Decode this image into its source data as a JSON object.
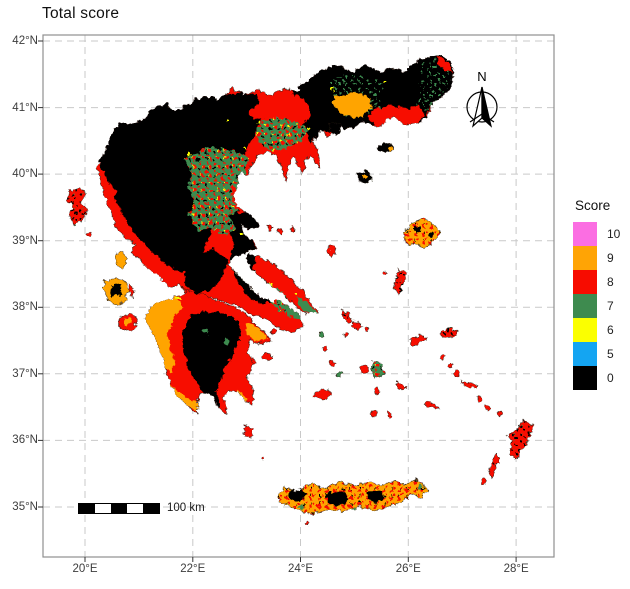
{
  "title": "Total score",
  "north_label": "N",
  "scalebar": {
    "label": "100 km"
  },
  "legend": {
    "title": "Score",
    "items": [
      {
        "label": "10",
        "color": "#fb6ee2"
      },
      {
        "label": "9",
        "color": "#ffa405"
      },
      {
        "label": "8",
        "color": "#f70c00"
      },
      {
        "label": "7",
        "color": "#3e8b4f"
      },
      {
        "label": "6",
        "color": "#fbff00"
      },
      {
        "label": "5",
        "color": "#14a5f2"
      },
      {
        "label": "0",
        "color": "#000000"
      }
    ]
  },
  "axes": {
    "lat_ticks": [
      "42°N",
      "41°N",
      "40°N",
      "39°N",
      "38°N",
      "37°N",
      "36°N",
      "35°N"
    ],
    "lon_ticks": [
      "20°E",
      "22°E",
      "24°E",
      "26°E",
      "28°E"
    ]
  },
  "colors": {
    "gridline": "#c9c9c9",
    "frame": "#8f8f8f",
    "tick": "#333333",
    "tick_label": "#3d3d3d"
  }
}
